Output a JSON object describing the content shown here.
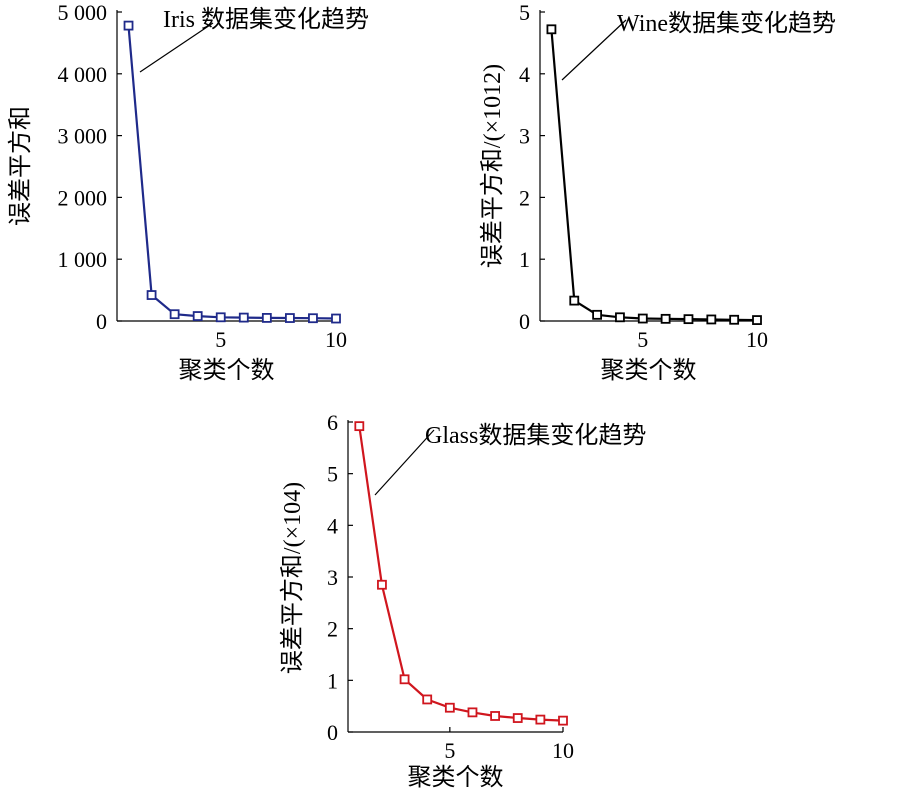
{
  "chart_data": [
    {
      "type": "line",
      "title": "",
      "annotation": "Iris 数据集变化趋势",
      "xlabel": "聚类个数",
      "ylabel": "误差平方和",
      "xlim": [
        0.5,
        10
      ],
      "ylim": [
        0,
        5000
      ],
      "xticks": [
        5,
        10
      ],
      "xtick_labels": [
        "5",
        "10"
      ],
      "yticks": [
        0,
        1000,
        2000,
        3000,
        4000,
        5000
      ],
      "ytick_labels": [
        "0",
        "1 000",
        "2 000",
        "3 000",
        "4 000",
        "5 000"
      ],
      "color": "#1f2a8a",
      "marker": "square",
      "grid": false,
      "x": [
        1,
        2,
        3,
        4,
        5,
        6,
        7,
        8,
        9,
        10
      ],
      "y": [
        4780,
        420,
        110,
        80,
        60,
        55,
        50,
        48,
        45,
        40
      ]
    },
    {
      "type": "line",
      "title": "",
      "annotation": "Wine数据集变化趋势",
      "xlabel": "聚类个数",
      "ylabel": "误差平方和/(×1012)",
      "xlim": [
        0.5,
        10
      ],
      "ylim": [
        0,
        5
      ],
      "xticks": [
        5,
        10
      ],
      "xtick_labels": [
        "5",
        "10"
      ],
      "yticks": [
        0,
        1,
        2,
        3,
        4,
        5
      ],
      "ytick_labels": [
        "0",
        "1",
        "2",
        "3",
        "4",
        "5"
      ],
      "color": "#000000",
      "marker": "square",
      "grid": false,
      "x": [
        1,
        2,
        3,
        4,
        5,
        6,
        7,
        8,
        9,
        10
      ],
      "y": [
        4.72,
        0.33,
        0.1,
        0.06,
        0.04,
        0.035,
        0.03,
        0.025,
        0.02,
        0.015
      ]
    },
    {
      "type": "line",
      "title": "",
      "annotation": "Glass数据集变化趋势",
      "xlabel": "聚类个数",
      "ylabel": "误差平方和/(×104)",
      "xlim": [
        0.5,
        10
      ],
      "ylim": [
        0,
        6
      ],
      "xticks": [
        5,
        10
      ],
      "xtick_labels": [
        "5",
        "10"
      ],
      "yticks": [
        0,
        1,
        2,
        3,
        4,
        5,
        6
      ],
      "ytick_labels": [
        "0",
        "1",
        "2",
        "3",
        "4",
        "5",
        "6"
      ],
      "color": "#d0161e",
      "marker": "square",
      "grid": false,
      "x": [
        1,
        2,
        3,
        4,
        5,
        6,
        7,
        8,
        9,
        10
      ],
      "y": [
        5.92,
        2.85,
        1.02,
        0.63,
        0.47,
        0.38,
        0.31,
        0.27,
        0.24,
        0.22
      ]
    }
  ]
}
